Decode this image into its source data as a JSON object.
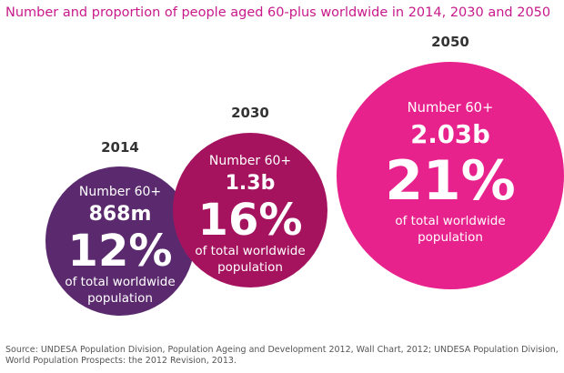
{
  "title": "Number and proportion of people aged 60-plus worldwide in 2014, 2030 and 2050",
  "source": "Source: UNDESA Population Division, Population Ageing and Development 2012, Wall Chart, 2012; UNDESA Population Division, World Population Prospects: the 2012 Revision, 2013.",
  "colors": {
    "title": "#c8198a",
    "bubble_2014": "#5b2a6e",
    "bubble_2030": "#a5135f",
    "bubble_2050": "#e8228d",
    "text_on_bubble": "#ffffff",
    "year_label": "#333333"
  },
  "chart_data": {
    "type": "bubble",
    "title": "Number and proportion of people aged 60-plus worldwide in 2014, 2030 and 2050",
    "number_label": "Number 60+",
    "share_label_line1": "of total worldwide",
    "share_label_line2": "population",
    "points": [
      {
        "year": "2014",
        "number": "868m",
        "share": "12%",
        "number_value_billion": 0.868,
        "share_value": 12
      },
      {
        "year": "2030",
        "number": "1.3b",
        "share": "16%",
        "number_value_billion": 1.3,
        "share_value": 16
      },
      {
        "year": "2050",
        "number": "2.03b",
        "share": "21%",
        "number_value_billion": 2.03,
        "share_value": 21
      }
    ]
  }
}
